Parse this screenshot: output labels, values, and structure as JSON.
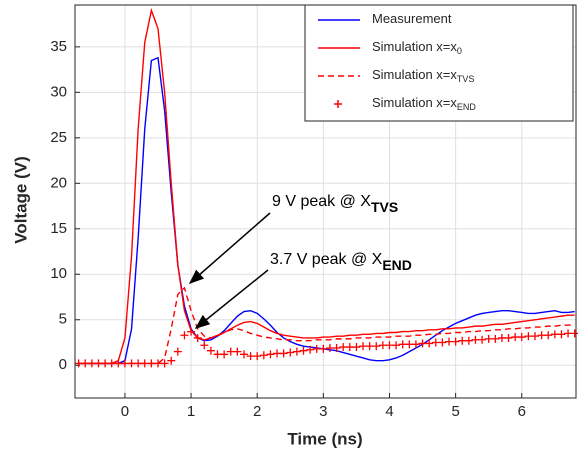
{
  "chart_data": {
    "type": "line",
    "xlabel": "Time (ns)",
    "ylabel": "Voltage (V)",
    "xlim": [
      -0.755,
      6.82
    ],
    "xticks": [
      0,
      1,
      2,
      3,
      4,
      5,
      6
    ],
    "ylim": [
      -3.6,
      39.6
    ],
    "yticks": [
      0,
      5,
      10,
      15,
      20,
      25,
      30,
      35
    ],
    "grid": true,
    "legend": "upper right",
    "x": [
      -0.7,
      -0.6,
      -0.5,
      -0.4,
      -0.3,
      -0.2,
      -0.1,
      0,
      0.1,
      0.2,
      0.3,
      0.4,
      0.5,
      0.6,
      0.7,
      0.8,
      0.9,
      1,
      1.1,
      1.2,
      1.3,
      1.4,
      1.5,
      1.6,
      1.7,
      1.8,
      1.9,
      2,
      2.1,
      2.2,
      2.3,
      2.4,
      2.5,
      2.6,
      2.7,
      2.8,
      2.9,
      3,
      3.1,
      3.2,
      3.3,
      3.4,
      3.5,
      3.6,
      3.7,
      3.8,
      3.9,
      4,
      4.1,
      4.2,
      4.3,
      4.4,
      4.5,
      4.6,
      4.7,
      4.8,
      4.9,
      5,
      5.1,
      5.2,
      5.3,
      5.4,
      5.5,
      5.6,
      5.7,
      5.8,
      5.9,
      6,
      6.1,
      6.2,
      6.3,
      6.4,
      6.5,
      6.6,
      6.7,
      6.8
    ],
    "series": [
      {
        "name": "Measurement",
        "color": "#0000ff",
        "style": "solid",
        "values": [
          0.2,
          0.2,
          0.2,
          0.2,
          0.2,
          0.2,
          0.2,
          0.5,
          4,
          14,
          26,
          33.5,
          33.8,
          28,
          19,
          11,
          6.5,
          4,
          3,
          2.7,
          2.8,
          3.2,
          3.8,
          4.6,
          5.4,
          5.9,
          6,
          5.7,
          5.1,
          4.4,
          3.6,
          3,
          2.6,
          2.3,
          2.1,
          2,
          1.9,
          1.8,
          1.7,
          1.6,
          1.4,
          1.2,
          1.0,
          0.8,
          0.6,
          0.5,
          0.5,
          0.6,
          0.8,
          1.1,
          1.5,
          1.9,
          2.3,
          2.8,
          3.3,
          3.8,
          4.2,
          4.6,
          4.9,
          5.2,
          5.5,
          5.7,
          5.8,
          5.9,
          6,
          6,
          5.9,
          5.8,
          5.7,
          5.7,
          5.8,
          5.9,
          6,
          5.8,
          5.8,
          5.9
        ]
      },
      {
        "name": "Simulation x=x",
        "name_sub": "0",
        "color": "#ff0000",
        "style": "solid",
        "values": [
          0.2,
          0.2,
          0.2,
          0.2,
          0.2,
          0.2,
          0.5,
          3,
          12,
          26,
          35.5,
          39,
          37,
          30,
          20,
          11,
          6,
          3.8,
          3,
          2.8,
          3,
          3.3,
          3.6,
          4,
          4.4,
          4.7,
          4.8,
          4.6,
          4.2,
          3.8,
          3.5,
          3.3,
          3.2,
          3.1,
          3.0,
          3.0,
          3.0,
          3.1,
          3.1,
          3.2,
          3.2,
          3.3,
          3.3,
          3.4,
          3.4,
          3.5,
          3.5,
          3.6,
          3.6,
          3.7,
          3.7,
          3.8,
          3.8,
          3.9,
          3.9,
          4.0,
          4.0,
          4.1,
          4.1,
          4.2,
          4.3,
          4.3,
          4.4,
          4.5,
          4.5,
          4.6,
          4.7,
          4.8,
          4.9,
          5,
          5.1,
          5.2,
          5.3,
          5.4,
          5.5,
          5.5
        ]
      },
      {
        "name": "Simulation x=x",
        "name_sub": "TVS",
        "color": "#ff0000",
        "style": "dashed",
        "values": [
          0.2,
          0.2,
          0.2,
          0.2,
          0.2,
          0.2,
          0.2,
          0.2,
          0.2,
          0.2,
          0.2,
          0.2,
          0.2,
          0.8,
          4,
          7.8,
          8.5,
          6,
          4,
          3.2,
          3,
          3.2,
          3.6,
          3.9,
          4,
          3.8,
          3.5,
          3.3,
          3.1,
          3,
          2.9,
          2.8,
          2.8,
          2.7,
          2.7,
          2.7,
          2.8,
          2.8,
          2.8,
          2.9,
          2.9,
          2.9,
          3,
          3,
          3,
          3.1,
          3.1,
          3.1,
          3.2,
          3.2,
          3.2,
          3.3,
          3.3,
          3.4,
          3.4,
          3.5,
          3.5,
          3.6,
          3.6,
          3.7,
          3.7,
          3.8,
          3.8,
          3.9,
          3.9,
          4,
          4,
          4.1,
          4.1,
          4.2,
          4.2,
          4.3,
          4.3,
          4.4,
          4.4,
          4.5
        ]
      },
      {
        "name": "Simulation x=x",
        "name_sub": "END",
        "color": "#ff0000",
        "style": "plus",
        "values": [
          0.2,
          0.2,
          0.2,
          0.2,
          0.2,
          0.2,
          0.2,
          0.2,
          0.2,
          0.2,
          0.2,
          0.2,
          0.2,
          0.2,
          0.5,
          1.5,
          3.3,
          3.7,
          3,
          2.2,
          1.6,
          1.2,
          1.2,
          1.5,
          1.5,
          1.2,
          1,
          1,
          1.1,
          1.2,
          1.3,
          1.3,
          1.4,
          1.5,
          1.6,
          1.7,
          1.8,
          1.8,
          1.9,
          1.9,
          2,
          2,
          2,
          2.1,
          2.1,
          2.1,
          2.2,
          2.2,
          2.2,
          2.3,
          2.3,
          2.3,
          2.4,
          2.4,
          2.5,
          2.5,
          2.6,
          2.6,
          2.7,
          2.7,
          2.8,
          2.8,
          2.9,
          2.9,
          3,
          3,
          3.1,
          3.1,
          3.2,
          3.2,
          3.3,
          3.3,
          3.4,
          3.4,
          3.5,
          3.5
        ]
      }
    ],
    "annotations": [
      {
        "text": "9 V peak @ X",
        "sub": "TVS"
      },
      {
        "text": "3.7 V peak @ X",
        "sub": "END"
      }
    ]
  }
}
